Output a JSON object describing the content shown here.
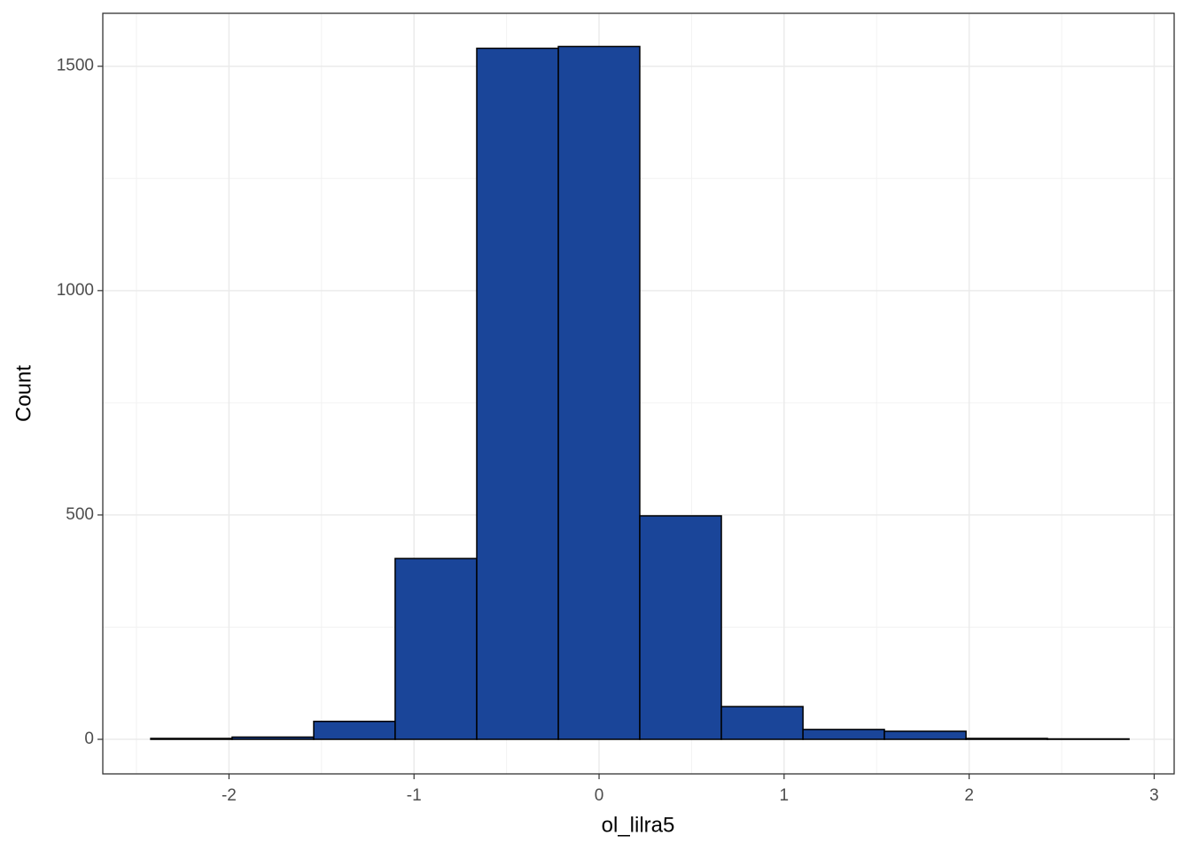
{
  "chart_data": {
    "type": "histogram",
    "x_label": "ol_lilra5",
    "y_label": "Count",
    "bins": [
      -2.423,
      -1.983,
      -1.542,
      -1.102,
      -0.661,
      -0.22,
      0.22,
      0.661,
      1.102,
      1.542,
      1.983,
      2.423,
      2.864
    ],
    "values": [
      2,
      5,
      40,
      403,
      1540,
      1544,
      498,
      73,
      22,
      18,
      2,
      1
    ],
    "color": "#1a4599",
    "edge_color": "#000000",
    "xlim": [
      -2.682,
      3.108
    ],
    "xticks": [
      -2,
      -1,
      0,
      1,
      2,
      3
    ],
    "ylim": [
      -77,
      1618
    ],
    "yticks": [
      0,
      500,
      1000,
      1500
    ],
    "grid": true
  }
}
